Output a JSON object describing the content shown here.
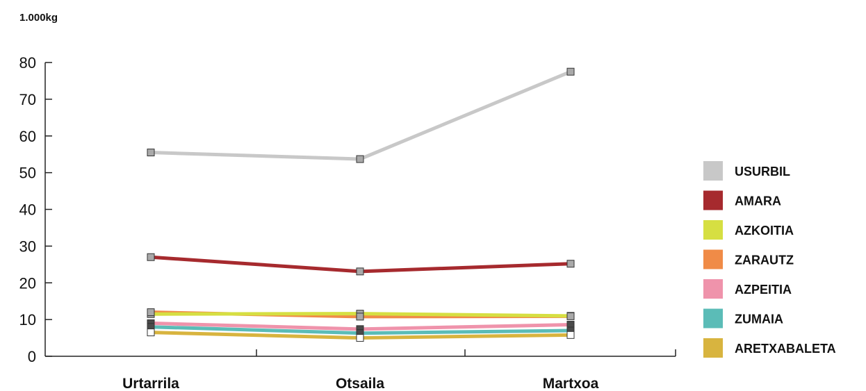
{
  "chart_data": {
    "type": "line",
    "unit_label": "1.000kg",
    "categories": [
      "Urtarrila",
      "Otsaila",
      "Martxoa"
    ],
    "ylim": [
      0,
      80
    ],
    "yticks": [
      0,
      10,
      20,
      30,
      40,
      50,
      60,
      70,
      80
    ],
    "grid": false,
    "legend_position": "right",
    "series": [
      {
        "name": "USURBIL",
        "color": "#c8c8c8",
        "values": [
          55.5,
          53.7,
          77.5
        ]
      },
      {
        "name": "AMARA",
        "color": "#a62a2e",
        "values": [
          27.0,
          23.1,
          25.2
        ]
      },
      {
        "name": "AZKOITIA",
        "color": "#d6df42",
        "values": [
          11.5,
          11.6,
          11.0
        ]
      },
      {
        "name": "ZARAUTZ",
        "color": "#f08b47",
        "values": [
          12.0,
          10.8,
          10.9
        ]
      },
      {
        "name": "AZPEITIA",
        "color": "#ef93ab",
        "values": [
          9.0,
          7.4,
          8.6
        ]
      },
      {
        "name": "ZUMAIA",
        "color": "#5bbcb7",
        "values": [
          8.0,
          6.3,
          7.0
        ]
      },
      {
        "name": "ARETXABALETA",
        "color": "#d8b43f",
        "values": [
          6.5,
          5.0,
          5.8
        ]
      }
    ]
  }
}
